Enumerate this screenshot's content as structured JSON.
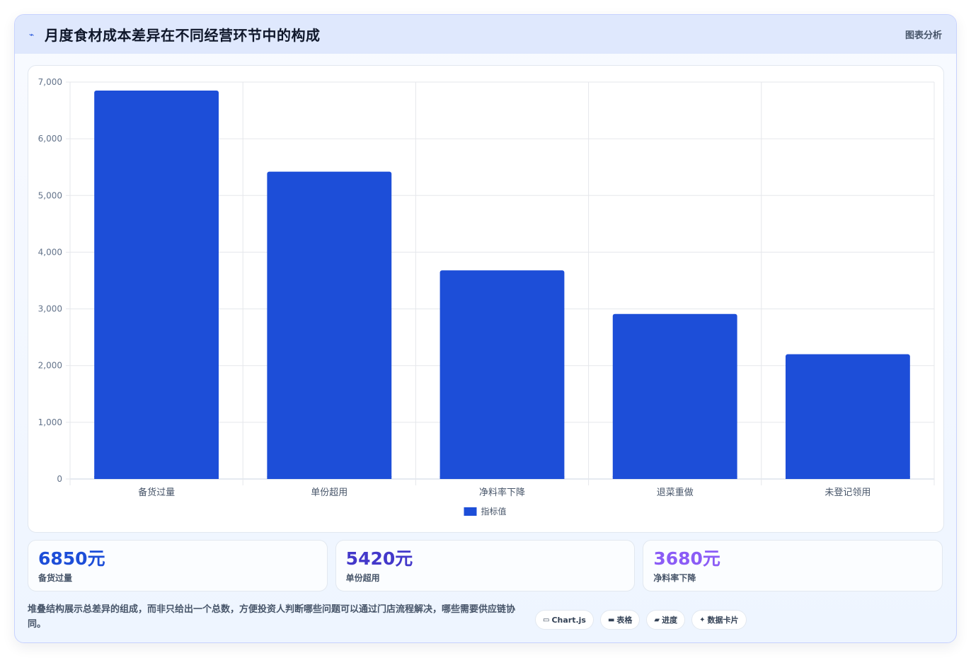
{
  "header": {
    "icon": "trend-line-icon",
    "title": "月度食材成本差异在不同经营环节中的构成",
    "badge": "图表分析"
  },
  "chart_data": {
    "type": "bar",
    "categories": [
      "备货过量",
      "单份超用",
      "净料率下降",
      "退菜重做",
      "未登记领用"
    ],
    "series": [
      {
        "name": "指标值",
        "values": [
          6850,
          5420,
          3680,
          2910,
          2200
        ],
        "color": "#1d4ed8"
      }
    ],
    "ylim": [
      0,
      7000
    ],
    "yticks": [
      "0",
      "1,000",
      "2,000",
      "3,000",
      "4,000",
      "5,000",
      "6,000",
      "7,000"
    ],
    "grid": true,
    "legend": "bottom"
  },
  "stats": [
    {
      "value": "6850元",
      "label": "备货过量",
      "color": "#1d4ed8"
    },
    {
      "value": "5420元",
      "label": "单份超用",
      "color": "#4338ca"
    },
    {
      "value": "3680元",
      "label": "净料率下降",
      "color": "#8b5cf6"
    }
  ],
  "footer": {
    "note": "堆叠结构展示总差异的组成，而非只给出一个总数，方便投资人判断哪些问题可以通过门店流程解决，哪些需要供应链协同。",
    "chips": [
      {
        "icon": "monitor-icon",
        "glyph": "▭",
        "label": "Chart.js"
      },
      {
        "icon": "table-icon",
        "glyph": "▬",
        "label": "表格"
      },
      {
        "icon": "progress-icon",
        "glyph": "▰",
        "label": "进度"
      },
      {
        "icon": "sparkle-icon",
        "glyph": "✦",
        "label": "数据卡片"
      }
    ]
  }
}
